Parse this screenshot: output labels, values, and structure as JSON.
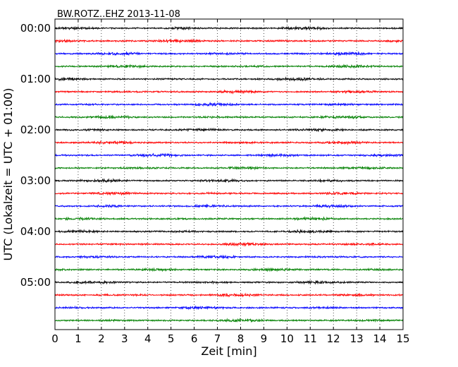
{
  "chart_data": {
    "type": "line",
    "title": "BW.ROTZ..EHZ 2013-11-08",
    "xlabel": "Zeit  [min]",
    "ylabel": "UTC (Lokalzeit = UTC + 01:00)",
    "xlim": [
      0,
      15
    ],
    "x_ticks": [
      0,
      1,
      2,
      3,
      4,
      5,
      6,
      7,
      8,
      9,
      10,
      11,
      12,
      13,
      14,
      15
    ],
    "x_tick_labels": [
      "0",
      "1",
      "2",
      "3",
      "4",
      "5",
      "6",
      "7",
      "8",
      "9",
      "10",
      "11",
      "12",
      "13",
      "14",
      "15"
    ],
    "y_tick_labels": [
      "00:00",
      "01:00",
      "02:00",
      "03:00",
      "04:00",
      "05:00"
    ],
    "trace_interval_min": 15,
    "trace_start_labels": [
      "00:00",
      "00:15",
      "00:30",
      "00:45",
      "01:00",
      "01:15",
      "01:30",
      "01:45",
      "02:00",
      "02:15",
      "02:30",
      "02:45",
      "03:00",
      "03:15",
      "03:30",
      "03:45",
      "04:00",
      "04:15",
      "04:30",
      "04:45",
      "05:00",
      "05:15",
      "05:30",
      "05:45"
    ],
    "trace_colors": [
      "#000000",
      "#ff0000",
      "#0000ff",
      "#008000"
    ],
    "grid": "vertical dotted lines at each minute",
    "series_description": "24 seismic traces, one per 15-minute window, colors cycle black/red/blue/green"
  }
}
